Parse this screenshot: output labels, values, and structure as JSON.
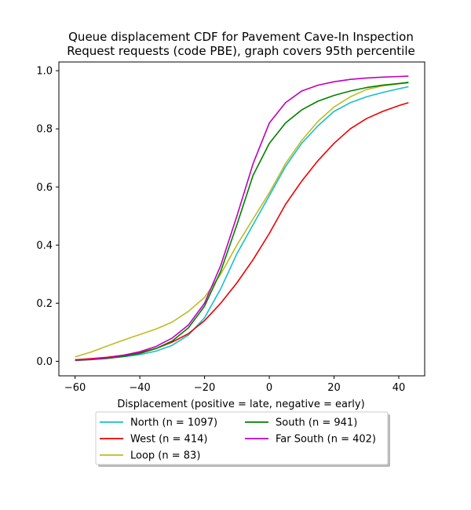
{
  "chart_data": {
    "type": "line",
    "title_lines": [
      "Queue displacement CDF for Pavement Cave-In Inspection",
      "Request  requests (code PBE), graph covers 95th percentile"
    ],
    "xlabel": "Displacement (positive = late, negative = early)",
    "ylabel": "",
    "xlim": [
      -65,
      48
    ],
    "ylim": [
      -0.05,
      1.03
    ],
    "xticks": [
      -60,
      -40,
      -20,
      0,
      20,
      40
    ],
    "yticks": [
      0.0,
      0.2,
      0.4,
      0.6,
      0.8,
      1.0
    ],
    "xtick_labels": [
      "−60",
      "−40",
      "−20",
      "0",
      "20",
      "40"
    ],
    "ytick_labels": [
      "0.0",
      "0.2",
      "0.4",
      "0.6",
      "0.8",
      "1.0"
    ],
    "grid": false,
    "legend_position": "below-center",
    "x": [
      -60,
      -55,
      -50,
      -45,
      -40,
      -35,
      -30,
      -25,
      -20,
      -15,
      -10,
      -5,
      0,
      5,
      10,
      15,
      20,
      25,
      30,
      35,
      40,
      43
    ],
    "series": [
      {
        "name": "North (n = 1097)",
        "color": "#17becf",
        "values": [
          0.005,
          0.007,
          0.011,
          0.016,
          0.023,
          0.035,
          0.055,
          0.09,
          0.15,
          0.25,
          0.37,
          0.47,
          0.57,
          0.67,
          0.75,
          0.81,
          0.86,
          0.89,
          0.91,
          0.925,
          0.938,
          0.945
        ]
      },
      {
        "name": "West (n = 414)",
        "color": "#ee0000",
        "values": [
          0.005,
          0.009,
          0.014,
          0.021,
          0.03,
          0.044,
          0.066,
          0.095,
          0.14,
          0.2,
          0.27,
          0.35,
          0.44,
          0.54,
          0.62,
          0.69,
          0.75,
          0.8,
          0.835,
          0.86,
          0.88,
          0.89
        ]
      },
      {
        "name": "Loop (n = 83)",
        "color": "#bcbd22",
        "values": [
          0.015,
          0.032,
          0.053,
          0.073,
          0.092,
          0.111,
          0.135,
          0.172,
          0.22,
          0.3,
          0.4,
          0.49,
          0.58,
          0.68,
          0.76,
          0.825,
          0.875,
          0.91,
          0.935,
          0.948,
          0.955,
          0.958
        ]
      },
      {
        "name": "South (n = 941)",
        "color": "#008000",
        "values": [
          0.003,
          0.006,
          0.01,
          0.017,
          0.027,
          0.044,
          0.07,
          0.115,
          0.19,
          0.31,
          0.47,
          0.64,
          0.75,
          0.82,
          0.865,
          0.895,
          0.915,
          0.93,
          0.942,
          0.95,
          0.956,
          0.96
        ]
      },
      {
        "name": "Far South (n = 402)",
        "color": "#bf00bf",
        "values": [
          0.004,
          0.007,
          0.012,
          0.021,
          0.033,
          0.051,
          0.08,
          0.125,
          0.2,
          0.33,
          0.5,
          0.68,
          0.82,
          0.89,
          0.93,
          0.95,
          0.962,
          0.97,
          0.975,
          0.978,
          0.98,
          0.981
        ]
      }
    ],
    "legend_layout": [
      [
        0,
        3
      ],
      [
        1,
        4
      ],
      [
        2
      ]
    ]
  }
}
